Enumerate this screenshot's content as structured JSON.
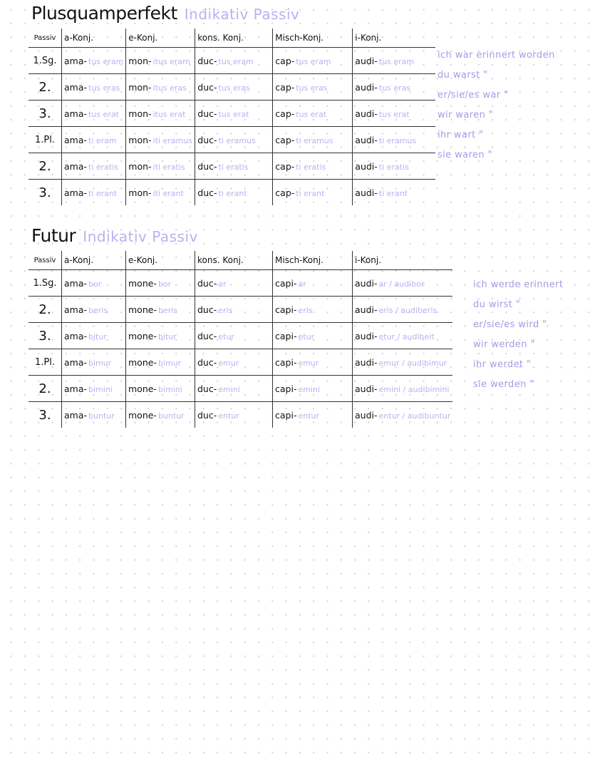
{
  "sections": [
    {
      "title": "Plusquamperfekt",
      "subtitle": "Indikativ Passiv",
      "headers": [
        "Passiv",
        "a-Konj.",
        "e-Konj.",
        "kons. Konj.",
        "Misch-Konj.",
        "i-Konj."
      ],
      "rows": [
        {
          "label": "1.Sg.",
          "cells": [
            [
              "ama-",
              "tus eram"
            ],
            [
              "mon-",
              "itus eram"
            ],
            [
              "duc-",
              "tus eram"
            ],
            [
              "cap-",
              "tus eram"
            ],
            [
              "audi-",
              "tus eram"
            ]
          ]
        },
        {
          "label": "2.",
          "cells": [
            [
              "ama-",
              "tus eras"
            ],
            [
              "mon-",
              "itus eras"
            ],
            [
              "duc-",
              "tus eras"
            ],
            [
              "cap-",
              "tus eras"
            ],
            [
              "audi-",
              "tus eras"
            ]
          ]
        },
        {
          "label": "3.",
          "cells": [
            [
              "ama-",
              "tus erat"
            ],
            [
              "mon-",
              "itus erat"
            ],
            [
              "duc-",
              "tus erat"
            ],
            [
              "cap-",
              "tus erat"
            ],
            [
              "audi-",
              "tus erat"
            ]
          ]
        },
        {
          "label": "1.Pl.",
          "cells": [
            [
              "ama-",
              "ti eram"
            ],
            [
              "mon-",
              "iti eramus"
            ],
            [
              "duc-",
              "ti eramus"
            ],
            [
              "cap-",
              "ti eramus"
            ],
            [
              "audi-",
              "ti eramus"
            ]
          ]
        },
        {
          "label": "2.",
          "cells": [
            [
              "ama-",
              "ti eratis"
            ],
            [
              "mon-",
              "iti eratis"
            ],
            [
              "duc-",
              "ti eratis"
            ],
            [
              "cap-",
              "ti eratis"
            ],
            [
              "audi-",
              "ti eratis"
            ]
          ]
        },
        {
          "label": "3.",
          "cells": [
            [
              "ama-",
              "ti erant"
            ],
            [
              "mon-",
              "iti erant"
            ],
            [
              "duc-",
              "ti erant"
            ],
            [
              "cap-",
              "ti erant"
            ],
            [
              "audi-",
              "ti erant"
            ]
          ]
        }
      ],
      "notes": [
        "ich war erinnert worden",
        "du warst \"",
        "er/sie/es war \"",
        "wir waren \"",
        "ihr wart \"",
        "sie waren \""
      ]
    },
    {
      "title": "Futur",
      "subtitle": "Indikativ Passiv",
      "headers": [
        "Passiv",
        "a-Konj.",
        "e-Konj.",
        "kons. Konj.",
        "Misch-Konj.",
        "i-Konj."
      ],
      "rows": [
        {
          "label": "1.Sg.",
          "cells": [
            [
              "ama-",
              "bor"
            ],
            [
              "mone-",
              "bor"
            ],
            [
              "duc-",
              "ar"
            ],
            [
              "capi-",
              "ar"
            ],
            [
              "audi-",
              "ar / audibor"
            ]
          ]
        },
        {
          "label": "2.",
          "cells": [
            [
              "ama-",
              "beris"
            ],
            [
              "mone-",
              "beris"
            ],
            [
              "duc-",
              "eris"
            ],
            [
              "capi-",
              "eris"
            ],
            [
              "audi-",
              "eris / audiberis"
            ]
          ]
        },
        {
          "label": "3.",
          "cells": [
            [
              "ama-",
              "bitur"
            ],
            [
              "mone-",
              "bitur"
            ],
            [
              "duc-",
              "etur"
            ],
            [
              "capi-",
              "etur"
            ],
            [
              "audi-",
              "etur / audibeit"
            ]
          ]
        },
        {
          "label": "1.Pl.",
          "cells": [
            [
              "ama-",
              "bimur"
            ],
            [
              "mone-",
              "bimur"
            ],
            [
              "duc-",
              "emur"
            ],
            [
              "capi-",
              "emur"
            ],
            [
              "audi-",
              "emur / audibimur"
            ]
          ]
        },
        {
          "label": "2.",
          "cells": [
            [
              "ama-",
              "bimini"
            ],
            [
              "mone-",
              "bimini"
            ],
            [
              "duc-",
              "emini"
            ],
            [
              "capi-",
              "emini"
            ],
            [
              "audi-",
              "emini / audibimini"
            ]
          ]
        },
        {
          "label": "3.",
          "cells": [
            [
              "ama-",
              "buntur"
            ],
            [
              "mone-",
              "buntur"
            ],
            [
              "duc-",
              "entur"
            ],
            [
              "capi-",
              "entur"
            ],
            [
              "audi-",
              "entur / audibuntur"
            ]
          ]
        }
      ],
      "notes": [
        "ich werde erinnert",
        "du wirst \"",
        "er/sie/es wird \"",
        "wir werden \"",
        "ihr werdet \"",
        "sie werden \""
      ]
    }
  ]
}
